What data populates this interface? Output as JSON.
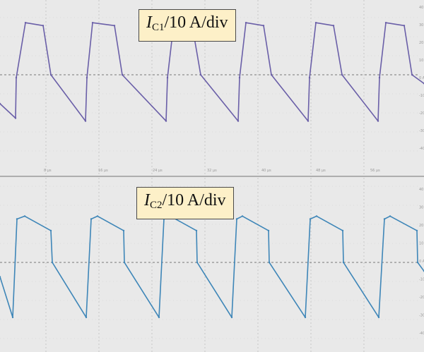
{
  "chart_data": [
    {
      "type": "line",
      "title": "I_C1/10 A/div",
      "label": {
        "symbol": "I",
        "subscript": "C1",
        "suffix": "/10 A/div"
      },
      "ylabel": "",
      "xlabel": "",
      "x_tick_labels": [
        "8 µs",
        "16 µs",
        "24 µs",
        "32 µs",
        "40 µs",
        "48 µs",
        "56 µs"
      ],
      "y_tick_labels": [
        "40 A",
        "30 A",
        "20 A",
        "10 A",
        "0 A",
        "-10 A",
        "-20 A",
        "-30 A",
        "-40 A"
      ],
      "ylim": [
        -40,
        40
      ],
      "xlim": [
        0,
        60
      ],
      "grid": true,
      "color": "#6a5fa8",
      "series": [
        {
          "x": [
            0,
            2.2,
            2.3,
            3.6,
            6.1,
            7.2,
            12.1,
            12.3,
            13.1,
            16.2,
            17.3,
            23.5,
            23.7,
            24.6,
            27.2,
            28.4,
            33.7,
            33.9,
            34.8,
            37.3,
            38.4,
            43.6,
            43.8,
            44.7,
            47.2,
            48.4,
            53.5,
            53.7,
            54.6,
            57.2,
            58.3,
            60
          ],
          "y": [
            -10,
            -15,
            -1,
            18,
            17,
            0,
            -16,
            -1,
            18,
            17,
            0,
            -16,
            -1,
            18,
            17,
            0,
            -16,
            -1,
            18,
            17,
            0,
            -16,
            -1,
            18,
            17,
            0,
            -16,
            -1,
            18,
            17,
            0,
            -3
          ]
        }
      ]
    },
    {
      "type": "line",
      "title": "I_C2/10 A/div",
      "label": {
        "symbol": "I",
        "subscript": "C2",
        "suffix": "/10 A/div"
      },
      "ylabel": "",
      "xlabel": "",
      "x_tick_labels": [],
      "y_tick_labels": [
        "40 A",
        "30 A",
        "20 A",
        "10 A",
        "0 A",
        "-10 A",
        "-20 A",
        "-30 A",
        "-40 A"
      ],
      "ylim": [
        -40,
        40
      ],
      "xlim": [
        0,
        60
      ],
      "grid": true,
      "color": "#3e86b8",
      "series": [
        {
          "x": [
            0,
            1.8,
            2.4,
            3.5,
            7.2,
            7.4,
            12.2,
            12.9,
            13.8,
            17.5,
            17.6,
            22.5,
            23.2,
            24.1,
            27.8,
            27.9,
            32.8,
            33.5,
            34.3,
            38.0,
            38.1,
            43.2,
            43.9,
            44.8,
            48.5,
            48.6,
            53.6,
            54.4,
            55.2,
            59,
            59.1,
            60
          ],
          "y": [
            -5,
            -19,
            15,
            16,
            11,
            0,
            -19,
            15,
            16,
            11,
            0,
            -19,
            15,
            16,
            11,
            0,
            -19,
            15,
            16,
            11,
            0,
            -19,
            15,
            16,
            11,
            0,
            -19,
            15,
            16,
            11,
            0,
            -3
          ]
        }
      ]
    }
  ]
}
